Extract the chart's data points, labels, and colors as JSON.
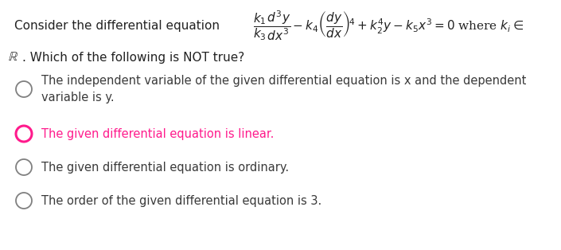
{
  "background_color": "#ffffff",
  "figsize": [
    7.05,
    3.14
  ],
  "dpi": 100,
  "preamble": "Consider the differential equation",
  "equation": "$\\dfrac{k_1}{k_3}\\dfrac{d^3y}{dx^3}-k_4\\left(\\dfrac{dy}{dx}\\right)^{\\!4}+k_2^4y-k_5x^3=0$ where $k_i\\in$",
  "second_line_math": "$\\mathbb{R}$",
  "second_line_text": ". Which of the following is NOT true?",
  "options": [
    {
      "text": "The independent variable of the given differential equation is x and the dependent\nvariable is y.",
      "circle_color": "#808080",
      "text_color": "#3a3a3a",
      "linewidth": 1.3
    },
    {
      "text": "The given differential equation is linear.",
      "circle_color": "#ff1a8c",
      "text_color": "#ff1a8c",
      "linewidth": 2.2
    },
    {
      "text": "The given differential equation is ordinary.",
      "circle_color": "#808080",
      "text_color": "#3a3a3a",
      "linewidth": 1.3
    },
    {
      "text": "The order of the given differential equation is 3.",
      "circle_color": "#808080",
      "text_color": "#3a3a3a",
      "linewidth": 1.3
    }
  ]
}
